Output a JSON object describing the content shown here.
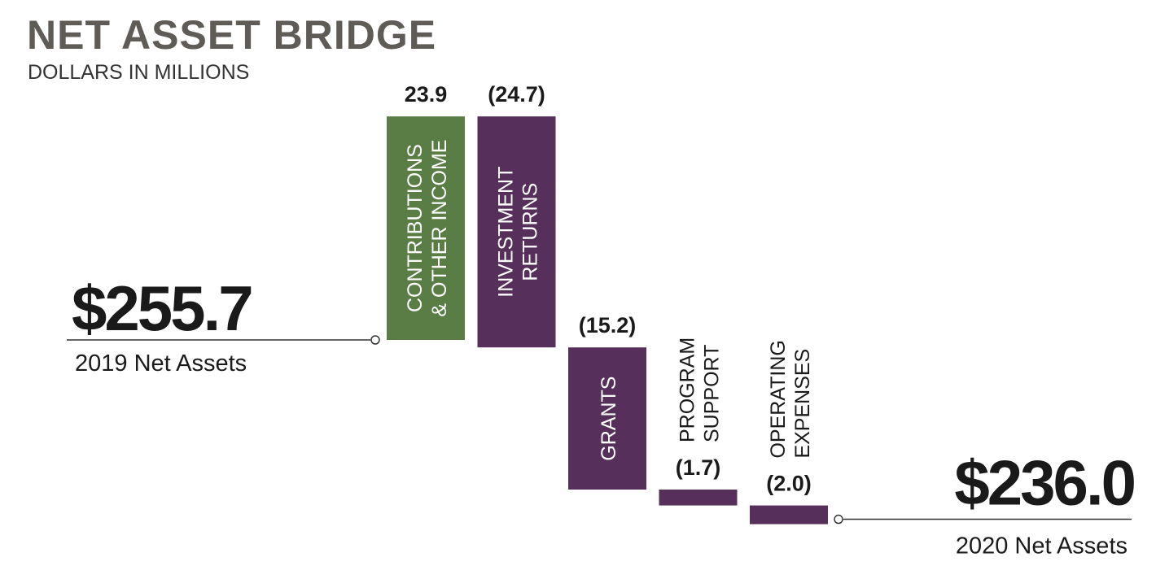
{
  "chart_data": {
    "type": "waterfall",
    "title": "NET ASSET BRIDGE",
    "subtitle": "DOLLARS IN MILLIONS",
    "start": {
      "label": "2019 Net Assets",
      "value": 255.7,
      "value_label": "$255.7"
    },
    "end": {
      "label": "2020 Net Assets",
      "value": 236.0,
      "value_label": "$236.0"
    },
    "categories": [
      [
        "CONTRIBUTIONS",
        "& OTHER INCOME"
      ],
      [
        "INVESTMENT",
        "RETURNS"
      ],
      [
        "GRANTS"
      ],
      [
        "PROGRAM",
        "SUPPORT"
      ],
      [
        "OPERATING",
        "EXPENSES"
      ]
    ],
    "values": [
      23.9,
      -24.7,
      -15.2,
      -1.7,
      -2.0
    ],
    "value_labels": [
      "23.9",
      "(24.7)",
      "(15.2)",
      "(1.7)",
      "(2.0)"
    ],
    "colors": [
      "#5a7d45",
      "#56305a",
      "#56305a",
      "#56305a",
      "#56305a"
    ]
  }
}
